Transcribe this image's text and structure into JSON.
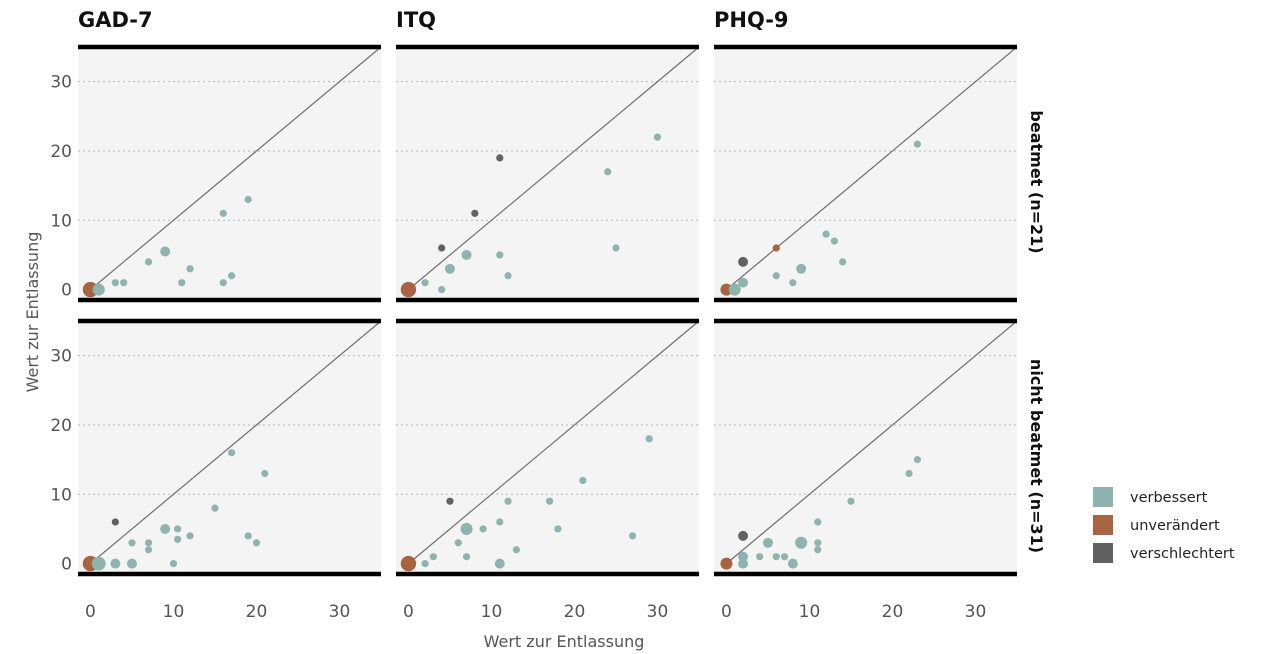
{
  "chart_data": {
    "type": "scatter",
    "facets": {
      "columns": [
        "GAD-7",
        "ITQ",
        "PHQ-9"
      ],
      "rows": [
        "beatmet (n=21)",
        "nicht beatmet (n=31)"
      ]
    },
    "xlabel": "Wert zur Entlassung",
    "ylabel": "Wert zur Entlassung",
    "xlim": [
      -1.5,
      35
    ],
    "ylim": [
      -1.5,
      35
    ],
    "x_ticks": [
      "0",
      "10",
      "20",
      "30"
    ],
    "y_ticks": [
      "0",
      "10",
      "20",
      "30"
    ],
    "reference_line": "y = x",
    "legend": {
      "placement": "right",
      "entries": [
        {
          "key": "verbessert",
          "label": "verbessert",
          "color": "#8fb3ae"
        },
        {
          "key": "unverändert",
          "label": "unverändert",
          "color": "#a96341"
        },
        {
          "key": "verschlechtert",
          "label": "verschlechtert",
          "color": "#616161"
        }
      ]
    },
    "panels": [
      {
        "column": "GAD-7",
        "row": "beatmet (n=21)",
        "points": [
          {
            "x": 0,
            "y": 0,
            "n": 5,
            "status": "unverändert"
          },
          {
            "x": 1,
            "y": 0,
            "n": 3,
            "status": "verbessert"
          },
          {
            "x": 3,
            "y": 1,
            "n": 1,
            "status": "verbessert"
          },
          {
            "x": 4,
            "y": 1,
            "n": 1,
            "status": "verbessert"
          },
          {
            "x": 7,
            "y": 4,
            "n": 1,
            "status": "verbessert"
          },
          {
            "x": 9,
            "y": 5.5,
            "n": 2,
            "status": "verbessert"
          },
          {
            "x": 11,
            "y": 1,
            "n": 1,
            "status": "verbessert"
          },
          {
            "x": 12,
            "y": 3,
            "n": 1,
            "status": "verbessert"
          },
          {
            "x": 16,
            "y": 11,
            "n": 1,
            "status": "verbessert"
          },
          {
            "x": 16,
            "y": 1,
            "n": 1,
            "status": "verbessert"
          },
          {
            "x": 17,
            "y": 2,
            "n": 1,
            "status": "verbessert"
          },
          {
            "x": 19,
            "y": 13,
            "n": 1,
            "status": "verbessert"
          }
        ]
      },
      {
        "column": "ITQ",
        "row": "beatmet (n=21)",
        "points": [
          {
            "x": 0,
            "y": 0,
            "n": 5,
            "status": "unverändert"
          },
          {
            "x": 2,
            "y": 1,
            "n": 1,
            "status": "verbessert"
          },
          {
            "x": 4,
            "y": 0,
            "n": 1,
            "status": "verbessert"
          },
          {
            "x": 4,
            "y": 6,
            "n": 1,
            "status": "verschlechtert"
          },
          {
            "x": 5,
            "y": 3,
            "n": 2,
            "status": "verbessert"
          },
          {
            "x": 7,
            "y": 5,
            "n": 2,
            "status": "verbessert"
          },
          {
            "x": 8,
            "y": 11,
            "n": 1,
            "status": "verschlechtert"
          },
          {
            "x": 11,
            "y": 5,
            "n": 1,
            "status": "verbessert"
          },
          {
            "x": 11,
            "y": 19,
            "n": 1,
            "status": "verschlechtert"
          },
          {
            "x": 12,
            "y": 2,
            "n": 1,
            "status": "verbessert"
          },
          {
            "x": 24,
            "y": 17,
            "n": 1,
            "status": "verbessert"
          },
          {
            "x": 25,
            "y": 6,
            "n": 1,
            "status": "verbessert"
          },
          {
            "x": 30,
            "y": 22,
            "n": 1,
            "status": "verbessert"
          }
        ]
      },
      {
        "column": "PHQ-9",
        "row": "beatmet (n=21)",
        "points": [
          {
            "x": 0,
            "y": 0,
            "n": 3,
            "status": "unverändert"
          },
          {
            "x": 1,
            "y": 0,
            "n": 3,
            "status": "verbessert"
          },
          {
            "x": 2,
            "y": 1,
            "n": 2,
            "status": "verbessert"
          },
          {
            "x": 2,
            "y": 4,
            "n": 2,
            "status": "verschlechtert"
          },
          {
            "x": 6,
            "y": 6,
            "n": 1,
            "status": "unverändert"
          },
          {
            "x": 6,
            "y": 2,
            "n": 1,
            "status": "verbessert"
          },
          {
            "x": 8,
            "y": 1,
            "n": 1,
            "status": "verbessert"
          },
          {
            "x": 9,
            "y": 3,
            "n": 2,
            "status": "verbessert"
          },
          {
            "x": 12,
            "y": 8,
            "n": 1,
            "status": "verbessert"
          },
          {
            "x": 13,
            "y": 7,
            "n": 1,
            "status": "verbessert"
          },
          {
            "x": 14,
            "y": 4,
            "n": 1,
            "status": "verbessert"
          },
          {
            "x": 23,
            "y": 21,
            "n": 1,
            "status": "verbessert"
          }
        ]
      },
      {
        "column": "GAD-7",
        "row": "nicht beatmet (n=31)",
        "points": [
          {
            "x": 0,
            "y": 0,
            "n": 5,
            "status": "unverändert"
          },
          {
            "x": 1,
            "y": 0,
            "n": 4,
            "status": "verbessert"
          },
          {
            "x": 3,
            "y": 0,
            "n": 2,
            "status": "verbessert"
          },
          {
            "x": 3,
            "y": 6,
            "n": 1,
            "status": "verschlechtert"
          },
          {
            "x": 5,
            "y": 0,
            "n": 2,
            "status": "verbessert"
          },
          {
            "x": 5,
            "y": 3,
            "n": 1,
            "status": "verbessert"
          },
          {
            "x": 7,
            "y": 3,
            "n": 1,
            "status": "verbessert"
          },
          {
            "x": 7,
            "y": 2,
            "n": 1,
            "status": "verbessert"
          },
          {
            "x": 9,
            "y": 5,
            "n": 2,
            "status": "verbessert"
          },
          {
            "x": 10,
            "y": 0,
            "n": 1,
            "status": "verbessert"
          },
          {
            "x": 10.5,
            "y": 5,
            "n": 1,
            "status": "verbessert"
          },
          {
            "x": 10.5,
            "y": 3.5,
            "n": 1,
            "status": "verbessert"
          },
          {
            "x": 12,
            "y": 4,
            "n": 1,
            "status": "verbessert"
          },
          {
            "x": 15,
            "y": 8,
            "n": 1,
            "status": "verbessert"
          },
          {
            "x": 17,
            "y": 16,
            "n": 1,
            "status": "verbessert"
          },
          {
            "x": 19,
            "y": 4,
            "n": 1,
            "status": "verbessert"
          },
          {
            "x": 20,
            "y": 3,
            "n": 1,
            "status": "verbessert"
          },
          {
            "x": 21,
            "y": 13,
            "n": 1,
            "status": "verbessert"
          }
        ]
      },
      {
        "column": "ITQ",
        "row": "nicht beatmet (n=31)",
        "points": [
          {
            "x": 0,
            "y": 0,
            "n": 5,
            "status": "unverändert"
          },
          {
            "x": 2,
            "y": 0,
            "n": 1,
            "status": "verbessert"
          },
          {
            "x": 3,
            "y": 1,
            "n": 1,
            "status": "verbessert"
          },
          {
            "x": 5,
            "y": 9,
            "n": 1,
            "status": "verschlechtert"
          },
          {
            "x": 6,
            "y": 3,
            "n": 1,
            "status": "verbessert"
          },
          {
            "x": 7,
            "y": 5,
            "n": 3,
            "status": "verbessert"
          },
          {
            "x": 7,
            "y": 1,
            "n": 1,
            "status": "verbessert"
          },
          {
            "x": 9,
            "y": 5,
            "n": 1,
            "status": "verbessert"
          },
          {
            "x": 11,
            "y": 0,
            "n": 2,
            "status": "verbessert"
          },
          {
            "x": 11,
            "y": 6,
            "n": 1,
            "status": "verbessert"
          },
          {
            "x": 12,
            "y": 9,
            "n": 1,
            "status": "verbessert"
          },
          {
            "x": 13,
            "y": 2,
            "n": 1,
            "status": "verbessert"
          },
          {
            "x": 17,
            "y": 9,
            "n": 1,
            "status": "verbessert"
          },
          {
            "x": 18,
            "y": 5,
            "n": 1,
            "status": "verbessert"
          },
          {
            "x": 21,
            "y": 12,
            "n": 1,
            "status": "verbessert"
          },
          {
            "x": 27,
            "y": 4,
            "n": 1,
            "status": "verbessert"
          },
          {
            "x": 29,
            "y": 18,
            "n": 1,
            "status": "verbessert"
          }
        ]
      },
      {
        "column": "PHQ-9",
        "row": "nicht beatmet (n=31)",
        "points": [
          {
            "x": 0,
            "y": 0,
            "n": 3,
            "status": "unverändert"
          },
          {
            "x": 2,
            "y": 0,
            "n": 2,
            "status": "verbessert"
          },
          {
            "x": 2,
            "y": 1,
            "n": 2,
            "status": "verbessert"
          },
          {
            "x": 2,
            "y": 4,
            "n": 2,
            "status": "verschlechtert"
          },
          {
            "x": 4,
            "y": 1,
            "n": 1,
            "status": "verbessert"
          },
          {
            "x": 5,
            "y": 3,
            "n": 2,
            "status": "verbessert"
          },
          {
            "x": 6,
            "y": 1,
            "n": 1,
            "status": "verbessert"
          },
          {
            "x": 7,
            "y": 1,
            "n": 1,
            "status": "verbessert"
          },
          {
            "x": 8,
            "y": 0,
            "n": 2,
            "status": "verbessert"
          },
          {
            "x": 9,
            "y": 3,
            "n": 3,
            "status": "verbessert"
          },
          {
            "x": 11,
            "y": 6,
            "n": 1,
            "status": "verbessert"
          },
          {
            "x": 11,
            "y": 3,
            "n": 1,
            "status": "verbessert"
          },
          {
            "x": 11,
            "y": 2,
            "n": 1,
            "status": "verbessert"
          },
          {
            "x": 15,
            "y": 9,
            "n": 1,
            "status": "verbessert"
          },
          {
            "x": 22,
            "y": 13,
            "n": 1,
            "status": "verbessert"
          },
          {
            "x": 23,
            "y": 15,
            "n": 1,
            "status": "verbessert"
          }
        ]
      }
    ]
  }
}
